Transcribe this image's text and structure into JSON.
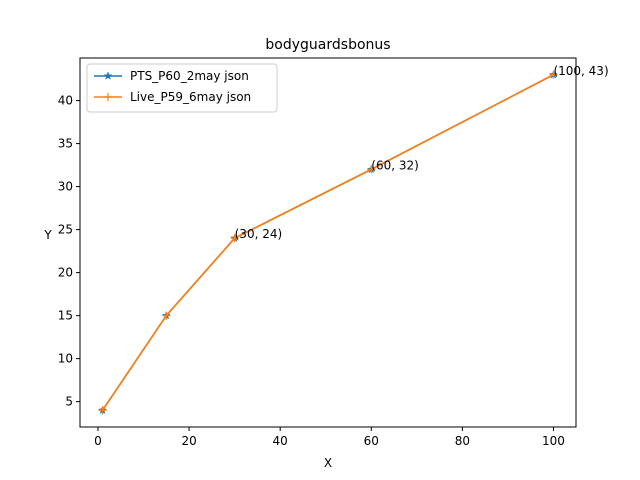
{
  "chart_data": {
    "type": "line",
    "title": "bodyguardsbonus",
    "xlabel": "X",
    "ylabel": "Y",
    "xlim": [
      -3.95,
      104.95
    ],
    "ylim": [
      2.05,
      44.95
    ],
    "xticks": [
      0,
      20,
      40,
      60,
      80,
      100
    ],
    "yticks": [
      5,
      10,
      15,
      20,
      25,
      30,
      35,
      40
    ],
    "grid": false,
    "legend_position": "upper-left",
    "series": [
      {
        "name": "PTS_P60_2may json",
        "color": "#1f77b4",
        "marker": "star",
        "x": [
          1,
          15,
          30,
          60,
          100
        ],
        "y": [
          4,
          15,
          24,
          32,
          43
        ]
      },
      {
        "name": "Live_P59_6may json",
        "color": "#ff7f0e",
        "marker": "plus",
        "x": [
          1,
          15,
          30,
          60,
          100
        ],
        "y": [
          4,
          15,
          24,
          32,
          43
        ]
      }
    ],
    "annotations": [
      {
        "x": 30,
        "y": 24,
        "text": "(30, 24)"
      },
      {
        "x": 60,
        "y": 32,
        "text": "(60, 32)"
      },
      {
        "x": 100,
        "y": 43,
        "text": "(100, 43)"
      }
    ]
  }
}
